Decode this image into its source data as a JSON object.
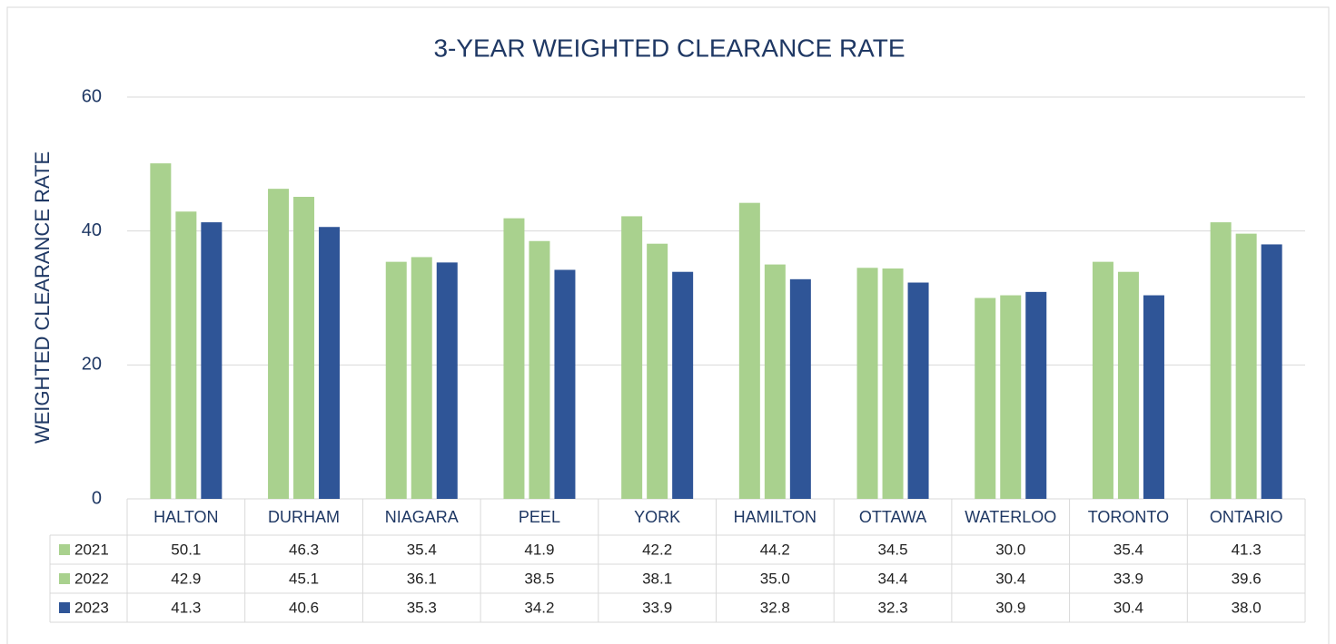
{
  "chart_data": {
    "type": "bar",
    "title": "3-YEAR WEIGHTED CLEARANCE RATE",
    "y_label": "WEIGHTED CLEARANCE RATE",
    "categories": [
      "HALTON",
      "DURHAM",
      "NIAGARA",
      "PEEL",
      "YORK",
      "HAMILTON",
      "OTTAWA",
      "WATERLOO",
      "TORONTO",
      "ONTARIO"
    ],
    "series": [
      {
        "name": "2021",
        "color": "#a9d18e",
        "values": [
          50.1,
          46.3,
          35.4,
          41.9,
          42.2,
          44.2,
          34.5,
          30.0,
          35.4,
          41.3
        ],
        "value_labels": [
          "50.1",
          "46.3",
          "35.4",
          "41.9",
          "42.2",
          "44.2",
          "34.5",
          "30.0",
          "35.4",
          "41.3"
        ]
      },
      {
        "name": "2022",
        "color": "#a9d18e",
        "values": [
          42.9,
          45.1,
          36.1,
          38.5,
          38.1,
          35.0,
          34.4,
          30.4,
          33.9,
          39.6
        ],
        "value_labels": [
          "42.9",
          "45.1",
          "36.1",
          "38.5",
          "38.1",
          "35.0",
          "34.4",
          "30.4",
          "33.9",
          "39.6"
        ]
      },
      {
        "name": "2023",
        "color": "#2f5597",
        "values": [
          41.3,
          40.6,
          35.3,
          34.2,
          33.9,
          32.8,
          32.3,
          30.9,
          30.4,
          38.0
        ],
        "value_labels": [
          "41.3",
          "40.6",
          "35.3",
          "34.2",
          "33.9",
          "32.8",
          "32.3",
          "30.9",
          "30.4",
          "38.0"
        ]
      }
    ],
    "ylim": [
      0,
      60
    ],
    "yticks": [
      0,
      20,
      40,
      60
    ],
    "grid": true
  }
}
